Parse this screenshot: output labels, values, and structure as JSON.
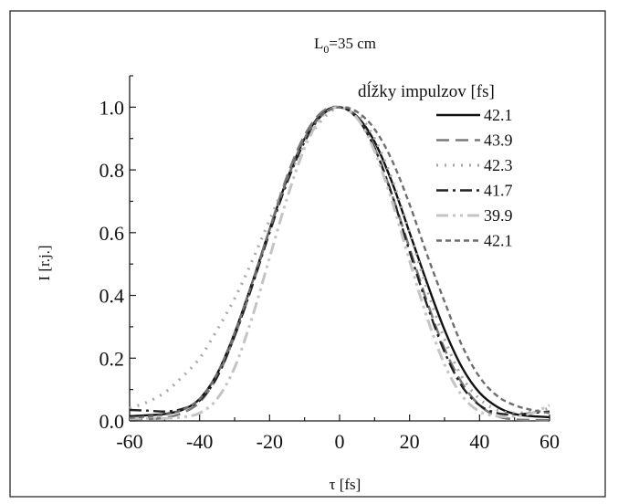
{
  "chart_data": {
    "type": "line",
    "title_main": "L",
    "title_sub": "0",
    "title_rest": "=35 cm",
    "xlabel": "τ [fs]",
    "ylabel": "I [r.j.]",
    "xlim": [
      -60,
      60
    ],
    "ylim": [
      0,
      1.1
    ],
    "xticks": [
      -60,
      -40,
      -20,
      0,
      20,
      40,
      60
    ],
    "xtick_labels": [
      "-60",
      "-40",
      "-20",
      "0",
      "20",
      "40",
      "60"
    ],
    "yticks": [
      0,
      0.2,
      0.4,
      0.6,
      0.8,
      1.0
    ],
    "ytick_labels": [
      "0.0",
      "0.2",
      "0.4",
      "0.6",
      "0.8",
      "1.0"
    ],
    "legend_title": "dĺžky impulzov [fs]",
    "legend_position": "top-right",
    "grid": false,
    "x": [
      -60,
      -55,
      -50,
      -45,
      -40,
      -35,
      -30,
      -25,
      -20,
      -15,
      -10,
      -5,
      0,
      5,
      10,
      15,
      20,
      25,
      30,
      35,
      40,
      45,
      50,
      55,
      60
    ],
    "series": [
      {
        "name": "42.1",
        "color": "#111111",
        "dash": "",
        "width": 2.4,
        "values": [
          0.015,
          0.018,
          0.022,
          0.035,
          0.07,
          0.15,
          0.28,
          0.44,
          0.61,
          0.77,
          0.9,
          0.98,
          1.0,
          0.97,
          0.89,
          0.76,
          0.6,
          0.44,
          0.29,
          0.17,
          0.09,
          0.045,
          0.022,
          0.015,
          0.012
        ]
      },
      {
        "name": "43.9",
        "color": "#7a7a7a",
        "dash": "14 7",
        "width": 2.6,
        "values": [
          0.005,
          0.006,
          0.01,
          0.025,
          0.06,
          0.14,
          0.27,
          0.43,
          0.61,
          0.78,
          0.91,
          0.985,
          1.0,
          0.965,
          0.87,
          0.72,
          0.55,
          0.38,
          0.23,
          0.12,
          0.05,
          0.015,
          0.005,
          0.003,
          0.002
        ]
      },
      {
        "name": "42.3",
        "color": "#a8a8a8",
        "dash": "2 7",
        "width": 3.2,
        "values": [
          0.04,
          0.06,
          0.09,
          0.14,
          0.2,
          0.29,
          0.39,
          0.51,
          0.64,
          0.77,
          0.88,
          0.96,
          1.0,
          0.98,
          0.9,
          0.77,
          0.6,
          0.42,
          0.26,
          0.14,
          0.07,
          0.035,
          0.025,
          0.03,
          0.04
        ]
      },
      {
        "name": "41.7",
        "color": "#222222",
        "dash": "13 5 3 5",
        "width": 2.4,
        "values": [
          0.035,
          0.033,
          0.03,
          0.038,
          0.065,
          0.14,
          0.27,
          0.43,
          0.6,
          0.76,
          0.89,
          0.975,
          1.0,
          0.965,
          0.87,
          0.72,
          0.54,
          0.37,
          0.22,
          0.11,
          0.05,
          0.025,
          0.02,
          0.025,
          0.03
        ]
      },
      {
        "name": "39.9",
        "color": "#c4c4c4",
        "dash": "13 5 3 5 3 5",
        "width": 3.0,
        "values": [
          0.008,
          0.008,
          0.008,
          0.012,
          0.025,
          0.07,
          0.17,
          0.33,
          0.52,
          0.71,
          0.87,
          0.97,
          1.0,
          0.965,
          0.86,
          0.7,
          0.51,
          0.33,
          0.18,
          0.08,
          0.03,
          0.015,
          0.015,
          0.025,
          0.05
        ]
      },
      {
        "name": "42.1",
        "color": "#6e6e6e",
        "dash": "6 4",
        "width": 2.4,
        "values": [
          0.01,
          0.014,
          0.02,
          0.035,
          0.07,
          0.15,
          0.28,
          0.44,
          0.61,
          0.77,
          0.9,
          0.975,
          1.0,
          0.985,
          0.93,
          0.83,
          0.69,
          0.53,
          0.38,
          0.24,
          0.14,
          0.08,
          0.05,
          0.035,
          0.025
        ]
      }
    ]
  }
}
